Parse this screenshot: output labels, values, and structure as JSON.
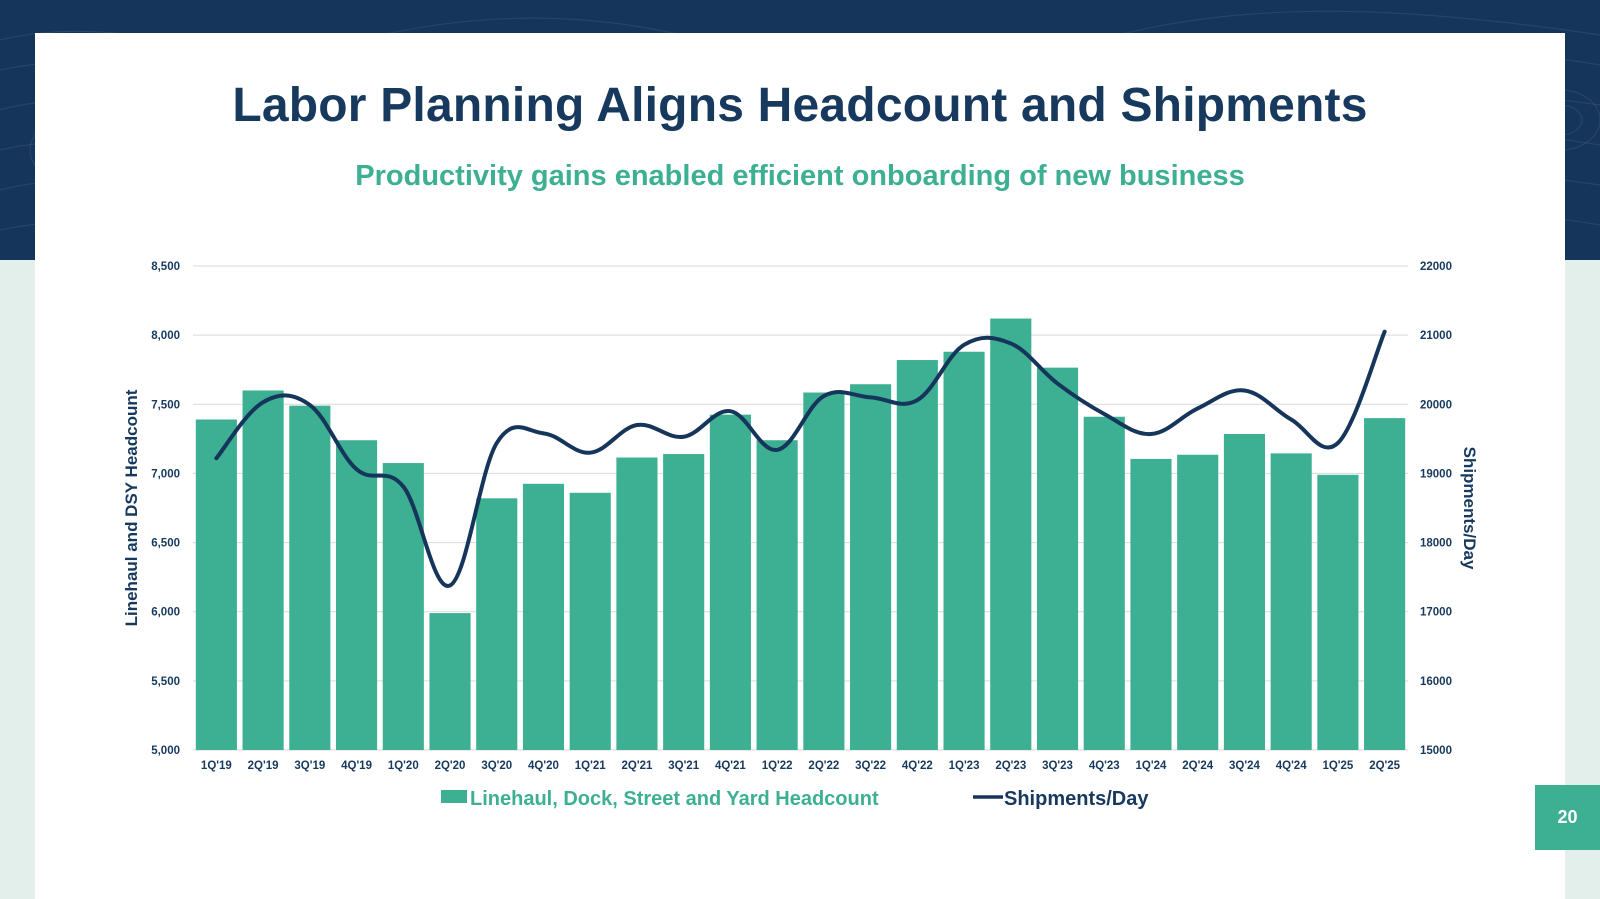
{
  "title": "Labor Planning Aligns Headcount and Shipments",
  "subtitle": "Productivity gains enabled efficient onboarding of new business",
  "page_number": "20",
  "colors": {
    "navy": "#17395e",
    "teal": "#3daf93",
    "band": "#16355a",
    "grid": "#d9d9d9",
    "line": "#16355a"
  },
  "chart_data": {
    "type": "bar+line",
    "categories": [
      "1Q'19",
      "2Q'19",
      "3Q'19",
      "4Q'19",
      "1Q'20",
      "2Q'20",
      "3Q'20",
      "4Q'20",
      "1Q'21",
      "2Q'21",
      "3Q'21",
      "4Q'21",
      "1Q'22",
      "2Q'22",
      "3Q'22",
      "4Q'22",
      "1Q'23",
      "2Q'23",
      "3Q'23",
      "4Q'23",
      "1Q'24",
      "2Q'24",
      "3Q'24",
      "4Q'24",
      "1Q'25",
      "2Q'25"
    ],
    "series": [
      {
        "name": "Linehaul, Dock, Street and Yard Headcount",
        "type": "bar",
        "axis": "left",
        "values": [
          7390,
          7600,
          7490,
          7240,
          7075,
          5990,
          6820,
          6925,
          6860,
          7115,
          7140,
          7425,
          7240,
          7585,
          7645,
          7820,
          7880,
          8120,
          7765,
          7410,
          7105,
          7135,
          7285,
          7145,
          6990,
          7400
        ]
      },
      {
        "name": "Shipments/Day",
        "type": "line",
        "axis": "right",
        "values": [
          19220,
          20030,
          19990,
          19060,
          18810,
          17380,
          19440,
          19580,
          19300,
          19700,
          19530,
          19900,
          19340,
          20120,
          20100,
          20060,
          20860,
          20880,
          20300,
          19860,
          19570,
          19940,
          20200,
          19780,
          19440,
          21050
        ]
      }
    ],
    "left_axis": {
      "label": "Linehaul and DSY Headcount",
      "range": [
        5000,
        8500
      ],
      "ticks": [
        5000,
        5500,
        6000,
        6500,
        7000,
        7500,
        8000,
        8500
      ],
      "tick_labels": [
        "5,000",
        "5,500",
        "6,000",
        "6,500",
        "7,000",
        "7,500",
        "8,000",
        "8,500"
      ]
    },
    "right_axis": {
      "label": "Shipments/Day",
      "range": [
        15000,
        22000
      ],
      "ticks": [
        15000,
        16000,
        17000,
        18000,
        19000,
        20000,
        21000,
        22000
      ],
      "tick_labels": [
        "15000",
        "16000",
        "17000",
        "18000",
        "19000",
        "20000",
        "21000",
        "22000"
      ]
    },
    "grid": true,
    "legend": "bottom-center"
  }
}
